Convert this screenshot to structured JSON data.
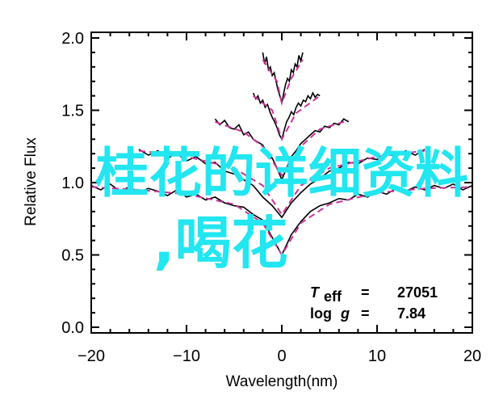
{
  "chart_data": {
    "type": "line",
    "title": "",
    "xlabel": "Wavelength(nm)",
    "ylabel": "Relative Flux",
    "xlim": [
      -20,
      20
    ],
    "ylim": [
      0.0,
      2.0
    ],
    "xticks": [
      "−20",
      "−10",
      "0",
      "10",
      "20"
    ],
    "yticks": [
      "0.0",
      "0.5",
      "1.0",
      "1.5",
      "2.0"
    ],
    "grid": false,
    "annotations": {
      "teff_label": "T",
      "teff_sub": "eff",
      "teff_eq": "=",
      "teff_value": "27051",
      "logg_label": "log",
      "logg_g": "g",
      "logg_eq": "=",
      "logg_value": "7.84"
    },
    "colors": {
      "observed": "#000000",
      "model": "#cc3399"
    },
    "series": [
      {
        "name": "observed-1",
        "kind": "observed",
        "x0": -20,
        "dx": 1,
        "y": [
          0.98,
          0.95,
          0.99,
          0.94,
          0.97,
          0.93,
          0.96,
          0.94,
          0.91,
          0.95,
          0.9,
          0.92,
          0.88,
          0.9,
          0.86,
          0.84,
          0.83,
          0.78,
          0.74,
          0.62,
          0.5,
          0.64,
          0.73,
          0.8,
          0.84,
          0.86,
          0.89,
          0.88,
          0.92,
          0.9,
          0.94,
          0.92,
          0.96,
          0.94,
          0.97,
          0.95,
          0.98,
          0.96,
          0.99,
          0.95,
          0.98
        ]
      },
      {
        "name": "model-1",
        "kind": "model",
        "x": [
          -20,
          -15,
          -10,
          -5,
          -2,
          0,
          2,
          5,
          10,
          15,
          20
        ],
        "y": [
          0.97,
          0.95,
          0.92,
          0.85,
          0.72,
          0.5,
          0.72,
          0.85,
          0.93,
          0.96,
          0.97
        ]
      },
      {
        "name": "observed-2",
        "kind": "observed",
        "x0": -15,
        "dx": 1,
        "y": [
          1.23,
          1.19,
          1.22,
          1.17,
          1.2,
          1.15,
          1.18,
          1.13,
          1.14,
          1.08,
          1.06,
          1.02,
          0.98,
          0.9,
          0.84,
          0.76,
          0.86,
          0.93,
          0.99,
          1.03,
          1.08,
          1.1,
          1.14,
          1.13,
          1.17,
          1.16,
          1.2,
          1.18,
          1.22,
          1.19,
          1.23
        ]
      },
      {
        "name": "model-2",
        "kind": "model",
        "x": [
          -15,
          -10,
          -5,
          -2,
          0,
          2,
          5,
          10,
          15
        ],
        "y": [
          1.22,
          1.18,
          1.1,
          0.98,
          0.78,
          0.98,
          1.1,
          1.18,
          1.22
        ]
      },
      {
        "name": "observed-3",
        "kind": "observed",
        "x0": -7,
        "dx": 0.5,
        "y": [
          1.44,
          1.4,
          1.43,
          1.38,
          1.37,
          1.4,
          1.33,
          1.35,
          1.3,
          1.28,
          1.26,
          1.2,
          1.17,
          1.1,
          1.02,
          1.1,
          1.18,
          1.22,
          1.27,
          1.3,
          1.33,
          1.36,
          1.35,
          1.39,
          1.38,
          1.41,
          1.4,
          1.44,
          1.42
        ]
      },
      {
        "name": "model-3",
        "kind": "model",
        "x": [
          -7,
          -4,
          -2,
          0,
          2,
          4,
          7
        ],
        "y": [
          1.42,
          1.35,
          1.25,
          1.05,
          1.25,
          1.37,
          1.43
        ]
      },
      {
        "name": "observed-4",
        "kind": "observed",
        "x0": -3,
        "dx": 0.25,
        "y": [
          1.62,
          1.58,
          1.6,
          1.55,
          1.57,
          1.52,
          1.54,
          1.49,
          1.45,
          1.42,
          1.38,
          1.33,
          1.3,
          1.36,
          1.42,
          1.45,
          1.49,
          1.47,
          1.52,
          1.55,
          1.53,
          1.57,
          1.56,
          1.6,
          1.58,
          1.62,
          1.59,
          1.61,
          1.6
        ]
      },
      {
        "name": "model-4",
        "kind": "model",
        "x": [
          -3,
          -1,
          0,
          1.5,
          4
        ],
        "y": [
          1.6,
          1.5,
          1.3,
          1.48,
          1.6
        ]
      },
      {
        "name": "observed-5",
        "kind": "observed",
        "x0": -2,
        "dx": 0.2,
        "y": [
          1.9,
          1.82,
          1.87,
          1.78,
          1.8,
          1.74,
          1.76,
          1.7,
          1.64,
          1.6,
          1.55,
          1.62,
          1.68,
          1.72,
          1.7,
          1.78,
          1.76,
          1.82,
          1.8,
          1.88,
          1.84,
          1.9
        ]
      },
      {
        "name": "model-5",
        "kind": "model",
        "x": [
          -2,
          -0.5,
          0,
          1,
          2.2
        ],
        "y": [
          1.85,
          1.7,
          1.55,
          1.72,
          1.85
        ]
      }
    ]
  },
  "overlay_text": {
    "line1": "桂花的详细资料",
    "line2": ",喝花"
  }
}
